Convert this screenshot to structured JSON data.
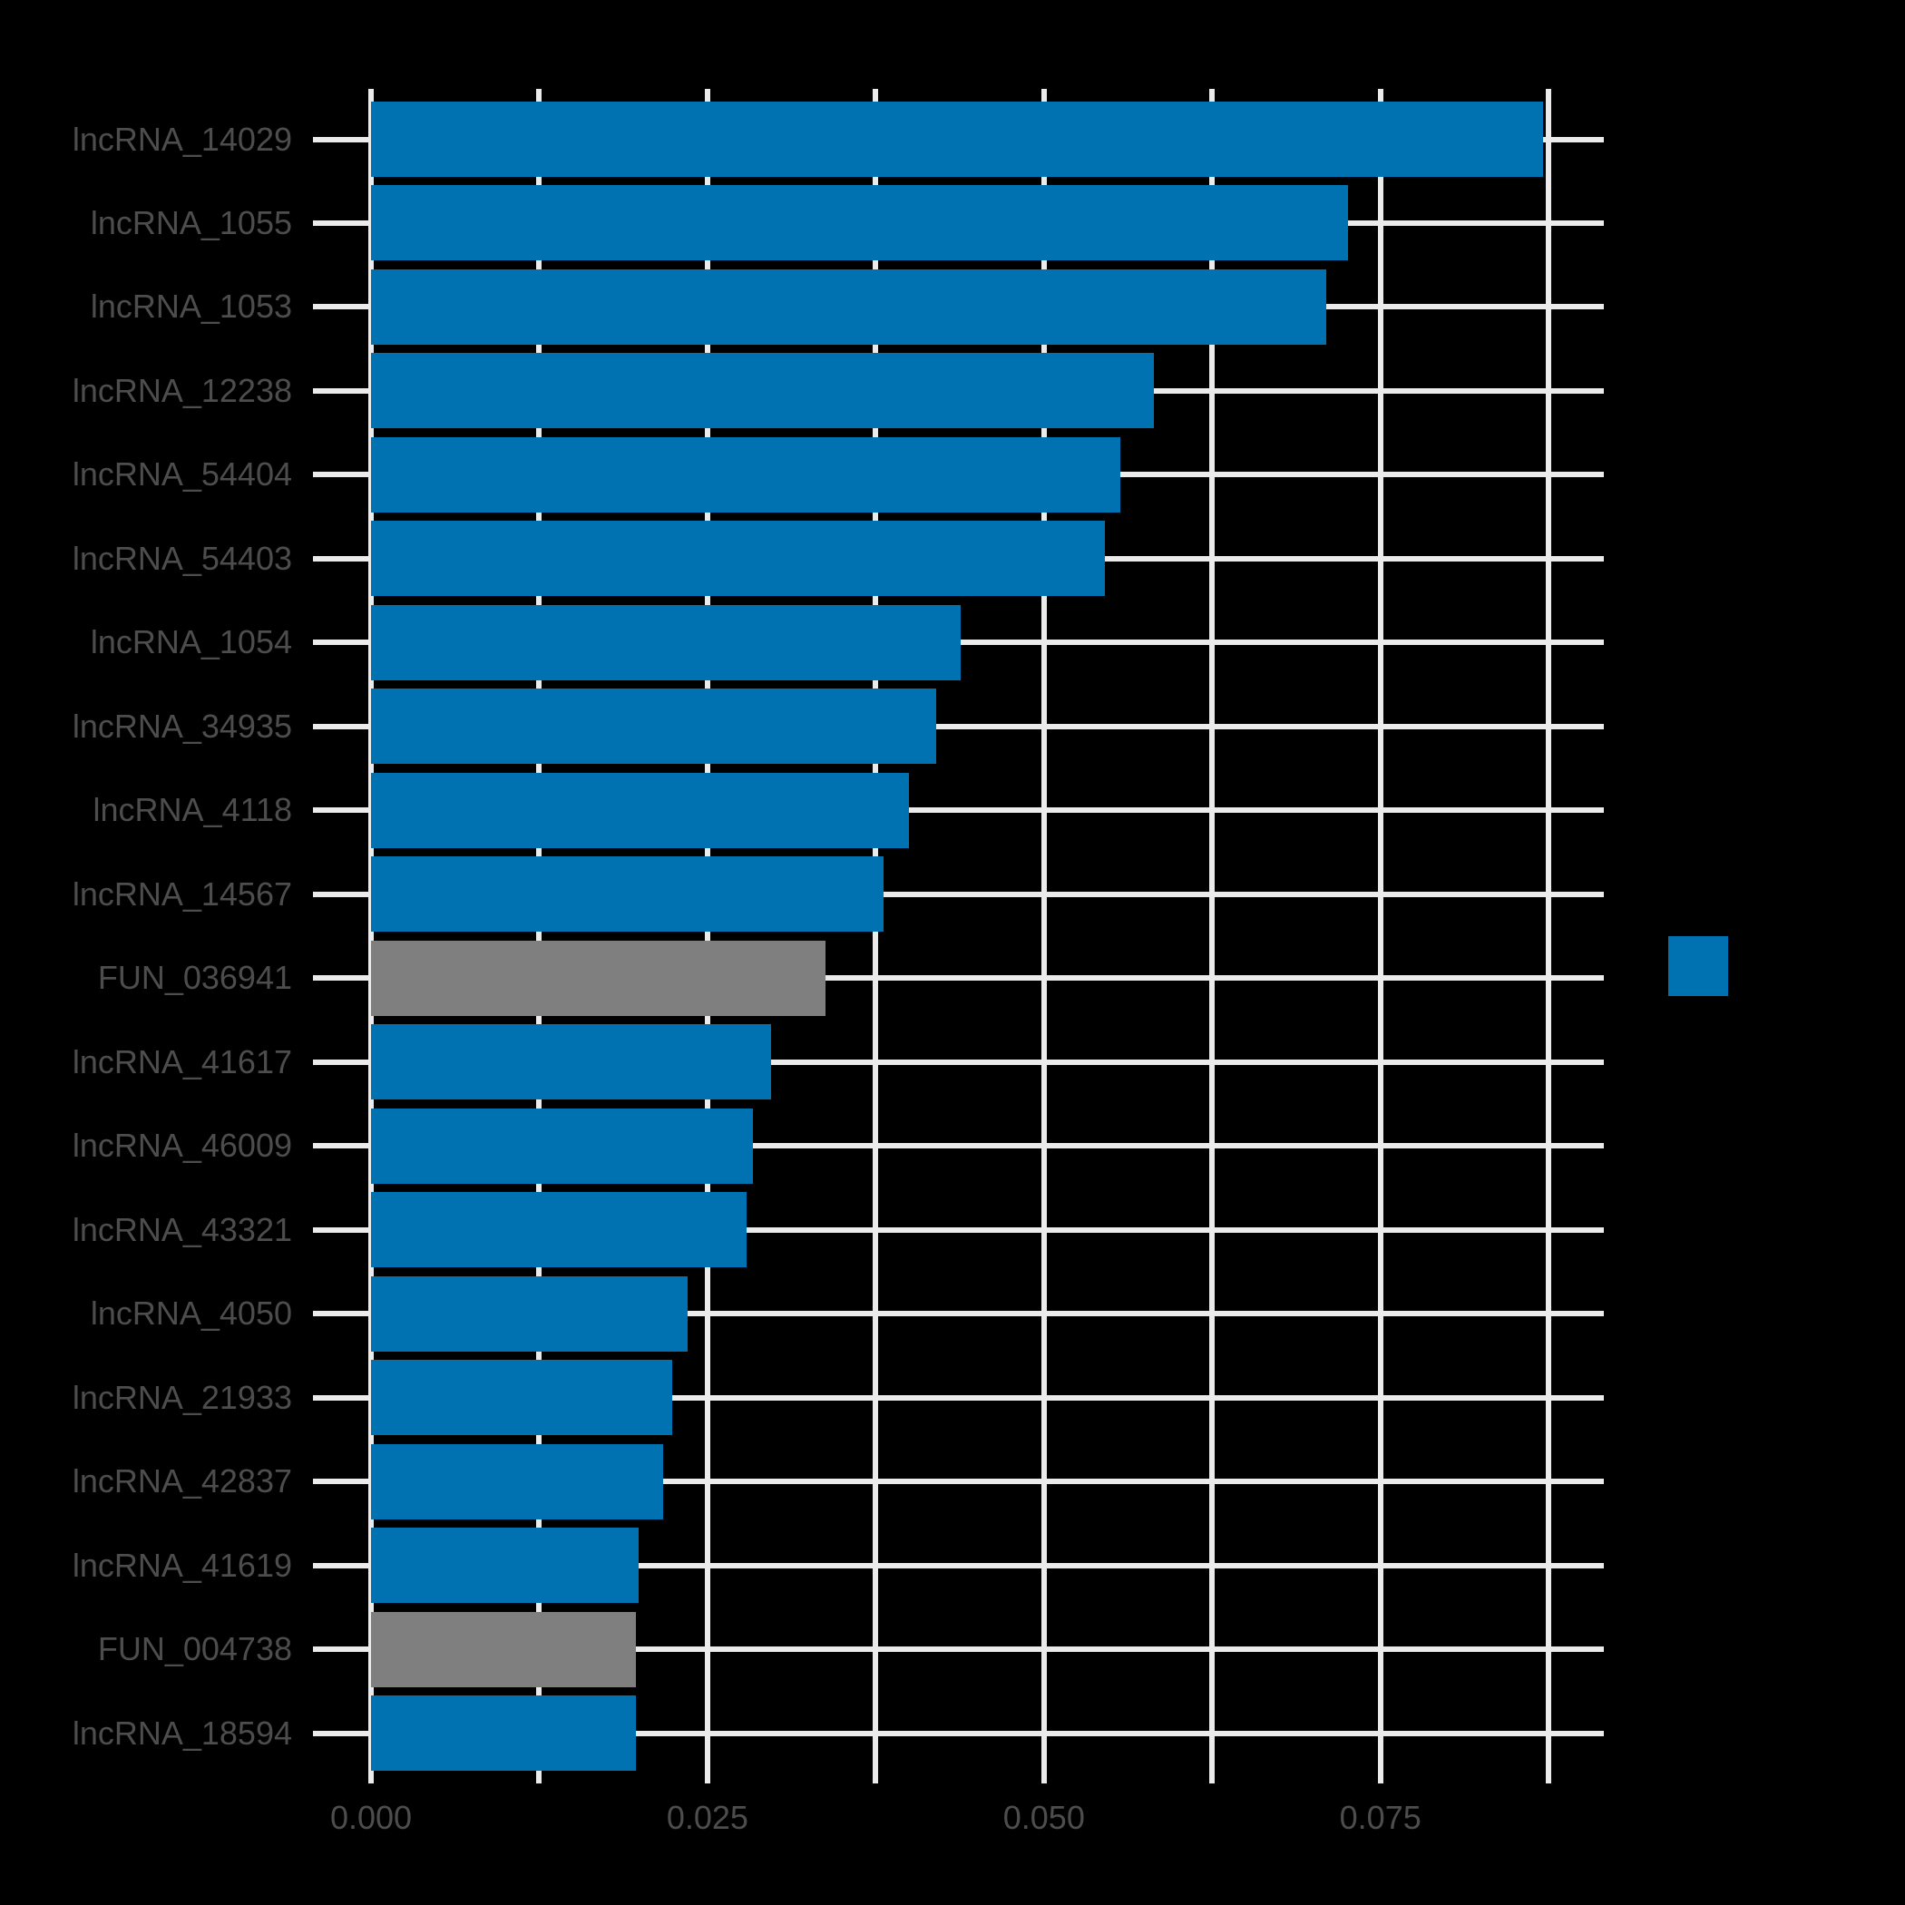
{
  "colors": {
    "background": "#000000",
    "bar_blue": "#0072B2",
    "bar_gray": "#7F7F7F",
    "grid": "#EBEBEB",
    "tick": "#EBEBEB",
    "axis_text": "#4D4D4D"
  },
  "chart_data": {
    "type": "bar",
    "orientation": "horizontal",
    "title": "",
    "xlabel": "",
    "ylabel": "",
    "grid": true,
    "xlim": [
      0,
      0.0916
    ],
    "categories": [
      "lncRNA_14029",
      "lncRNA_1055",
      "lncRNA_1053",
      "lncRNA_12238",
      "lncRNA_54404",
      "lncRNA_54403",
      "lncRNA_1054",
      "lncRNA_34935",
      "lncRNA_4118",
      "lncRNA_14567",
      "FUN_036941",
      "lncRNA_41617",
      "lncRNA_46009",
      "lncRNA_43321",
      "lncRNA_4050",
      "lncRNA_21933",
      "lncRNA_42837",
      "lncRNA_41619",
      "FUN_004738",
      "lncRNA_18594"
    ],
    "values": [
      0.0871,
      0.0726,
      0.071,
      0.0582,
      0.0557,
      0.0545,
      0.0438,
      0.042,
      0.04,
      0.0381,
      0.0338,
      0.0297,
      0.0284,
      0.0279,
      0.0235,
      0.0224,
      0.0217,
      0.0199,
      0.0197,
      0.0197
    ],
    "bar_colors": [
      "#0072B2",
      "#0072B2",
      "#0072B2",
      "#0072B2",
      "#0072B2",
      "#0072B2",
      "#0072B2",
      "#0072B2",
      "#0072B2",
      "#0072B2",
      "#7F7F7F",
      "#0072B2",
      "#0072B2",
      "#0072B2",
      "#0072B2",
      "#0072B2",
      "#0072B2",
      "#0072B2",
      "#7F7F7F",
      "#0072B2"
    ],
    "x_ticks": {
      "major_values": [
        0,
        0.025,
        0.05,
        0.075
      ],
      "major_labels": [
        "0.000",
        "0.025",
        "0.050",
        "0.075"
      ],
      "minor_values": [
        0.0125,
        0.0375,
        0.0625,
        0.0875
      ]
    },
    "legend": {
      "position": "right",
      "swatch_color": "#0072B2",
      "label": ""
    }
  }
}
